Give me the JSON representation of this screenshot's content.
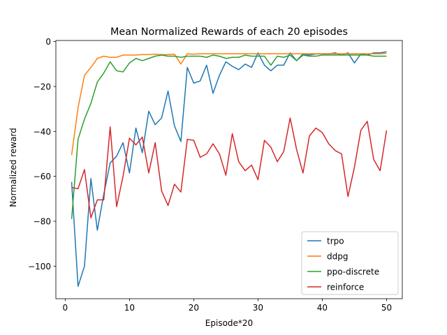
{
  "chart_data": {
    "type": "line",
    "title": "Mean Normalized Rewards of each 20 episodes",
    "xlabel": "Episode*20",
    "ylabel": "Normalized reward",
    "xlim": [
      -1.45,
      52.45
    ],
    "ylim": [
      -114.5,
      0.5
    ],
    "xticks": [
      0,
      10,
      20,
      30,
      40,
      50
    ],
    "yticks": [
      0,
      -20,
      -40,
      -60,
      -80,
      -100
    ],
    "grid": false,
    "legend_position": "bottom-right",
    "x": [
      1,
      2,
      3,
      4,
      5,
      6,
      7,
      8,
      9,
      10,
      11,
      12,
      13,
      14,
      15,
      16,
      17,
      18,
      19,
      20,
      21,
      22,
      23,
      24,
      25,
      26,
      27,
      28,
      29,
      30,
      31,
      32,
      33,
      34,
      35,
      36,
      37,
      38,
      39,
      40,
      41,
      42,
      43,
      44,
      45,
      46,
      47,
      48,
      49,
      50
    ],
    "series": [
      {
        "name": "trpo",
        "color": "#1f77b4",
        "values": [
          -62.5,
          -109,
          -100,
          -61,
          -84,
          -68,
          -54,
          -51,
          -45,
          -58.5,
          -38.5,
          -49.5,
          -31,
          -37,
          -34,
          -22,
          -37.5,
          -44.5,
          -11.5,
          -18.5,
          -17.5,
          -10.5,
          -23,
          -15,
          -9,
          -11,
          -12.5,
          -10,
          -11.5,
          -5,
          -10.5,
          -13,
          -10.5,
          -10.5,
          -5,
          -8.5,
          -5.5,
          -6,
          -5.5,
          -5.5,
          -5.5,
          -5,
          -6,
          -5,
          -9.5,
          -5.5,
          -6,
          -5,
          -5,
          -4.5
        ]
      },
      {
        "name": "ddpg",
        "color": "#ff7f0e",
        "values": [
          -50.5,
          -29.5,
          -15,
          -11.5,
          -7.5,
          -6.5,
          -7,
          -7,
          -6,
          -6,
          -6,
          -5.8,
          -5.8,
          -5.6,
          -5.8,
          -5.8,
          -5.6,
          -10,
          -5.4,
          -5.6,
          -5.4,
          -5.4,
          -5.4,
          -5.4,
          -5.4,
          -5.4,
          -5.4,
          -5.4,
          -5.4,
          -5.4,
          -5.4,
          -5.4,
          -5.4,
          -5.4,
          -5.4,
          -5.4,
          -5.4,
          -5.4,
          -5.4,
          -5.4,
          -5.4,
          -5.4,
          -5.4,
          -5.4,
          -5.4,
          -5.4,
          -5.4,
          -5.4,
          -5.4,
          -5.2
        ]
      },
      {
        "name": "ppo-discrete",
        "color": "#2ca02c",
        "values": [
          -79,
          -43.5,
          -34.5,
          -27.5,
          -18,
          -14,
          -9,
          -13,
          -13.5,
          -9.5,
          -7.5,
          -8.5,
          -7.5,
          -6.5,
          -6,
          -6.5,
          -6.5,
          -7,
          -6.5,
          -6.5,
          -6.5,
          -7,
          -6,
          -6.5,
          -7.5,
          -7,
          -7,
          -6,
          -6.5,
          -6.5,
          -6.5,
          -10.5,
          -6.5,
          -7,
          -6,
          -8.5,
          -6,
          -6.5,
          -6.5,
          -6,
          -6,
          -6,
          -6,
          -6,
          -6,
          -6,
          -6,
          -6.5,
          -6.5,
          -6.5
        ]
      },
      {
        "name": "reinforce",
        "color": "#d62728",
        "values": [
          -65,
          -65.5,
          -57,
          -78.5,
          -70.5,
          -70.5,
          -38,
          -73.5,
          -60,
          -43,
          -46,
          -42.5,
          -58.5,
          -45,
          -66.5,
          -73,
          -63.5,
          -67,
          -43.5,
          -44,
          -51.5,
          -50,
          -45.5,
          -50,
          -59.5,
          -41,
          -53.5,
          -57.5,
          -55,
          -61.5,
          -44,
          -47,
          -53.5,
          -49,
          -34,
          -48,
          -58.5,
          -42,
          -38.5,
          -40.5,
          -45.5,
          -48.5,
          -50,
          -69,
          -56,
          -39.5,
          -35.5,
          -52.5,
          -57.5,
          -39.5
        ]
      }
    ]
  }
}
